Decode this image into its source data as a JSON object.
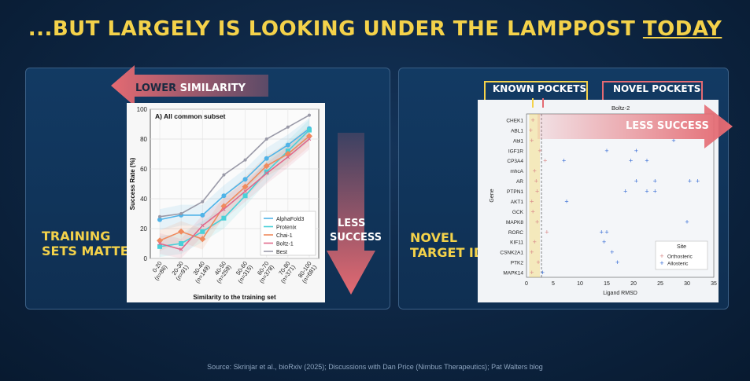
{
  "slide": {
    "title_main": "...BUT LARGELY IS LOOKING UNDER THE LAMPPOST ",
    "title_underlined": "TODAY",
    "source": "Source: Skrinjar et al., bioRxiv (2025); Discussions with Dan Price (Nimbus Therapeutics); Pat Walters blog"
  },
  "left_panel": {
    "label_line1": "TRAINING",
    "label_line2": "SETS MATTER",
    "arrow_lower_word": "LOWER",
    "arrow_similarity_word": " SIMILARITY",
    "arrow_less_line1": "LESS",
    "arrow_less_line2": "SUCCESS"
  },
  "right_panel": {
    "label_line1": "NOVEL",
    "label_line2": "TARGET ID",
    "known_pockets": "KNOWN POCKETS",
    "novel_pockets": "NOVEL POCKETS",
    "less_success": "LESS SUCCESS"
  },
  "colors": {
    "accent_yellow": "#f4d24a",
    "arrow_red": "#e46a72",
    "alphafold3": "#4fb3e8",
    "protenix": "#49d0d8",
    "chai1": "#f08a5d",
    "boltz1": "#e06a8c",
    "best": "#9a9aa8"
  },
  "chart_data": [
    {
      "type": "line",
      "title": "A) All common subset",
      "xlabel": "Similarity to the training set",
      "ylabel": "Success Rate (%)",
      "ylim": [
        0,
        100
      ],
      "yticks": [
        "0",
        "20",
        "40",
        "60",
        "80",
        "100"
      ],
      "categories": [
        "0-20\n(n=86)",
        "20-30\n(n=91)",
        "30-40\n(n=149)",
        "40-50\n(n=259)",
        "50-60\n(n=315)",
        "60-70\n(n=378)",
        "70-80\n(n=371)",
        "80-100\n(n=681)"
      ],
      "grid": true,
      "legend": "bottom-right",
      "series": [
        {
          "name": "AlphaFold3",
          "values": [
            26,
            29,
            29,
            42,
            53,
            67,
            76,
            87
          ]
        },
        {
          "name": "Protenix",
          "values": [
            8,
            10,
            18,
            27,
            42,
            58,
            72,
            86
          ]
        },
        {
          "name": "Chai-1",
          "values": [
            12,
            18,
            13,
            35,
            48,
            62,
            70,
            82
          ]
        },
        {
          "name": "Boltz-1",
          "values": [
            10,
            6,
            22,
            33,
            45,
            57,
            68,
            80
          ]
        },
        {
          "name": "Best",
          "values": [
            28,
            30,
            38,
            56,
            66,
            80,
            88,
            96
          ]
        }
      ]
    },
    {
      "type": "scatter",
      "title": "Boltz-2",
      "xlabel": "Ligand RMSD",
      "ylabel": "Gene",
      "xlim": [
        0,
        35
      ],
      "xticks": [
        "0",
        "5",
        "10",
        "15",
        "20",
        "25",
        "30",
        "35"
      ],
      "categories": [
        "CHEK1",
        "ABL1",
        "Abl1",
        "IGF1R",
        "CP3A4",
        "mhcA",
        "AR",
        "PTPN1",
        "AKT1",
        "GCK",
        "MAPK8",
        "RORC",
        "KIF11",
        "CSNK2A1",
        "PTK2",
        "MAPK14"
      ],
      "legend": "bottom-right",
      "legend_title": "Site",
      "series": [
        {
          "name": "Orthosteric",
          "points": [
            [
              1.2,
              "CHEK1"
            ],
            [
              0.8,
              "ABL1"
            ],
            [
              1.0,
              "Abl1"
            ],
            [
              2.5,
              "IGF1R"
            ],
            [
              3.5,
              "CP3A4"
            ],
            [
              1.5,
              "mhcA"
            ],
            [
              1.8,
              "AR"
            ],
            [
              2.0,
              "PTPN1"
            ],
            [
              1.0,
              "AKT1"
            ],
            [
              1.2,
              "GCK"
            ],
            [
              2.0,
              "MAPK8"
            ],
            [
              3.8,
              "RORC"
            ],
            [
              1.5,
              "KIF11"
            ],
            [
              1.0,
              "CSNK2A1"
            ],
            [
              2.2,
              "PTK2"
            ],
            [
              1.0,
              "MAPK14"
            ]
          ]
        },
        {
          "name": "Allosteric",
          "points": [
            [
              27.5,
              "Abl1"
            ],
            [
              15,
              "IGF1R"
            ],
            [
              20.5,
              "IGF1R"
            ],
            [
              7,
              "CP3A4"
            ],
            [
              19.5,
              "CP3A4"
            ],
            [
              22.5,
              "CP3A4"
            ],
            [
              20.5,
              "AR"
            ],
            [
              24,
              "AR"
            ],
            [
              30.5,
              "AR"
            ],
            [
              32,
              "AR"
            ],
            [
              18.5,
              "PTPN1"
            ],
            [
              22.5,
              "PTPN1"
            ],
            [
              24,
              "PTPN1"
            ],
            [
              7.5,
              "AKT1"
            ],
            [
              30,
              "MAPK8"
            ],
            [
              14,
              "RORC"
            ],
            [
              15,
              "RORC"
            ],
            [
              14.5,
              "KIF11"
            ],
            [
              16,
              "CSNK2A1"
            ],
            [
              17,
              "PTK2"
            ],
            [
              3,
              "MAPK14"
            ]
          ]
        }
      ]
    }
  ]
}
